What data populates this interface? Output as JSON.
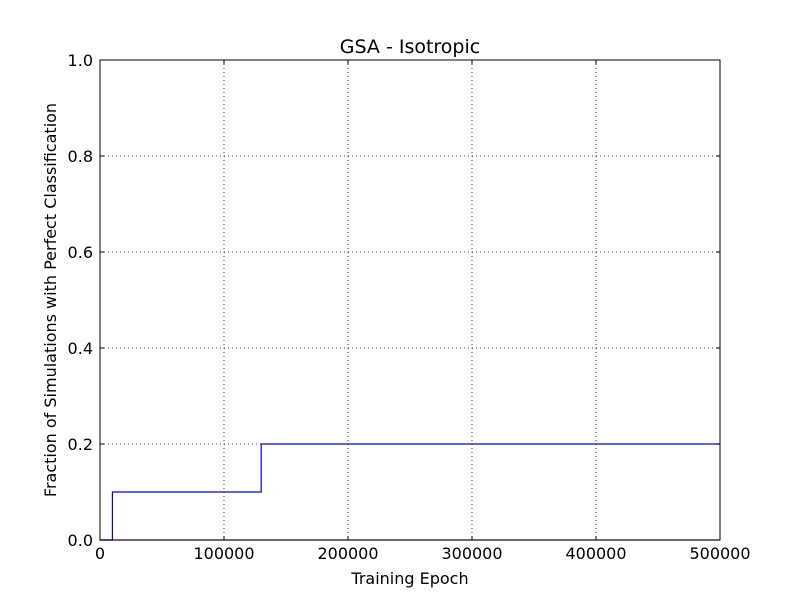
{
  "chart_data": {
    "type": "line",
    "title": "GSA - Isotropic",
    "xlabel": "Training Epoch",
    "ylabel": "Fraction of Simulations with Perfect Classification",
    "xlim": [
      0,
      500000
    ],
    "ylim": [
      0.0,
      1.0
    ],
    "x_ticks": [
      0,
      100000,
      200000,
      300000,
      400000,
      500000
    ],
    "x_tick_labels": [
      "0",
      "100000",
      "200000",
      "300000",
      "400000",
      "500000"
    ],
    "y_ticks": [
      0.0,
      0.2,
      0.4,
      0.6,
      0.8,
      1.0
    ],
    "y_tick_labels": [
      "0.0",
      "0.2",
      "0.4",
      "0.6",
      "0.8",
      "1.0"
    ],
    "grid": true,
    "series": [
      {
        "color": "#0000ff",
        "step": true,
        "x": [
          0,
          10000,
          130000,
          500000
        ],
        "y": [
          0.0,
          0.1,
          0.2,
          0.2
        ]
      },
      {
        "color": "#ff0000",
        "step": true,
        "x": [
          0,
          500000
        ],
        "y": [
          0.0,
          0.0
        ]
      }
    ]
  }
}
